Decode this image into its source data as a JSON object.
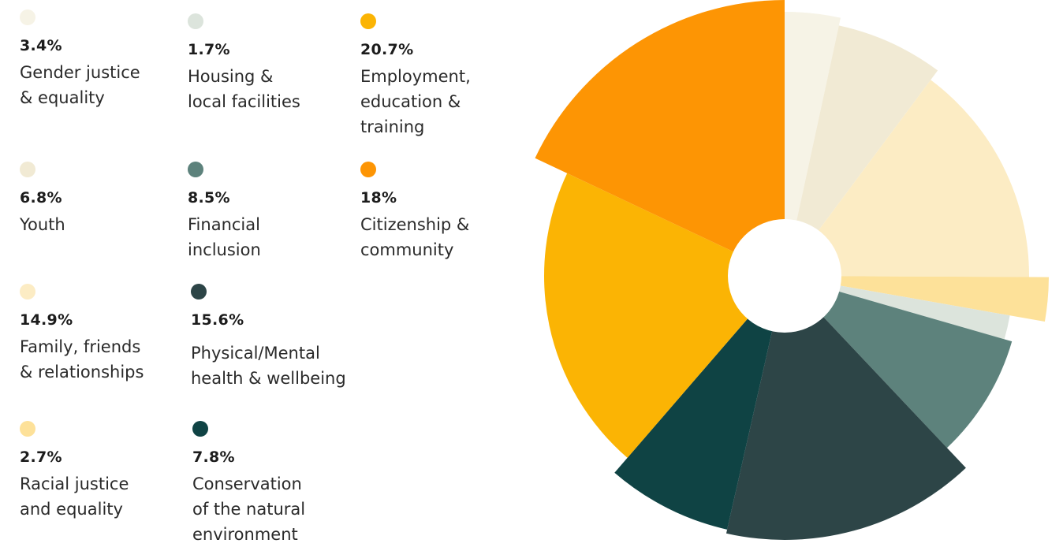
{
  "chart_data": {
    "type": "pie",
    "variant": "polar-area with center hole",
    "title": "",
    "series": [
      {
        "label": "Gender justice\n& equality",
        "percent": "3.4%",
        "value": 3.4,
        "color": "#f6f3e6"
      },
      {
        "label": "Youth",
        "percent": "6.8%",
        "value": 6.8,
        "color": "#f1ead4"
      },
      {
        "label": "Family, friends\n& relationships",
        "percent": "14.9%",
        "value": 14.9,
        "color": "#fcecc4"
      },
      {
        "label": "Racial justice\nand equality",
        "percent": "2.7%",
        "value": 2.7,
        "color": "#fde199"
      },
      {
        "label": "Housing &\nlocal facilities",
        "percent": "1.7%",
        "value": 1.7,
        "color": "#dce4dc"
      },
      {
        "label": "Financial\ninclusion",
        "percent": "8.5%",
        "value": 8.5,
        "color": "#5d827c"
      },
      {
        "label": "Physical/Mental\nhealth & wellbeing",
        "percent": "15.6%",
        "value": 15.6,
        "color": "#2d4547"
      },
      {
        "label": "Conservation\nof the natural\nenvironment",
        "percent": "7.8%",
        "value": 7.8,
        "color": "#0f4344"
      },
      {
        "label": "Employment,\neducation &\ntraining",
        "percent": "20.7%",
        "value": 20.7,
        "color": "#fbb404"
      },
      {
        "label": "Citizenship &\ncommunity",
        "percent": "18%",
        "value": 18,
        "color": "#fd9504"
      }
    ]
  }
}
